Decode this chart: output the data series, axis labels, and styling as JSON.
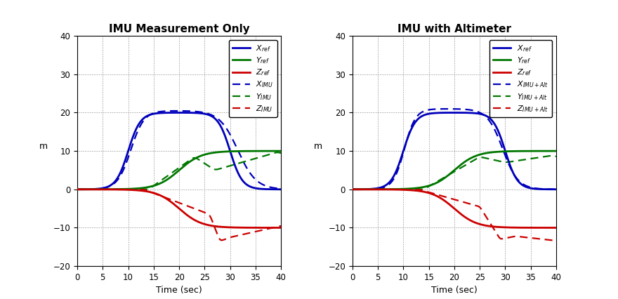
{
  "title_left": "IMU Measurement Only",
  "title_right": "IMU with Altimeter",
  "xlabel": "Time (sec)",
  "ylabel": "m",
  "xlim": [
    0,
    40
  ],
  "ylim": [
    -20,
    40
  ],
  "yticks": [
    -20,
    -10,
    0,
    10,
    20,
    30,
    40
  ],
  "xticks": [
    0,
    5,
    10,
    15,
    20,
    25,
    30,
    35,
    40
  ],
  "colors": {
    "blue": "#0000BB",
    "green": "#007700",
    "red": "#CC0000"
  }
}
